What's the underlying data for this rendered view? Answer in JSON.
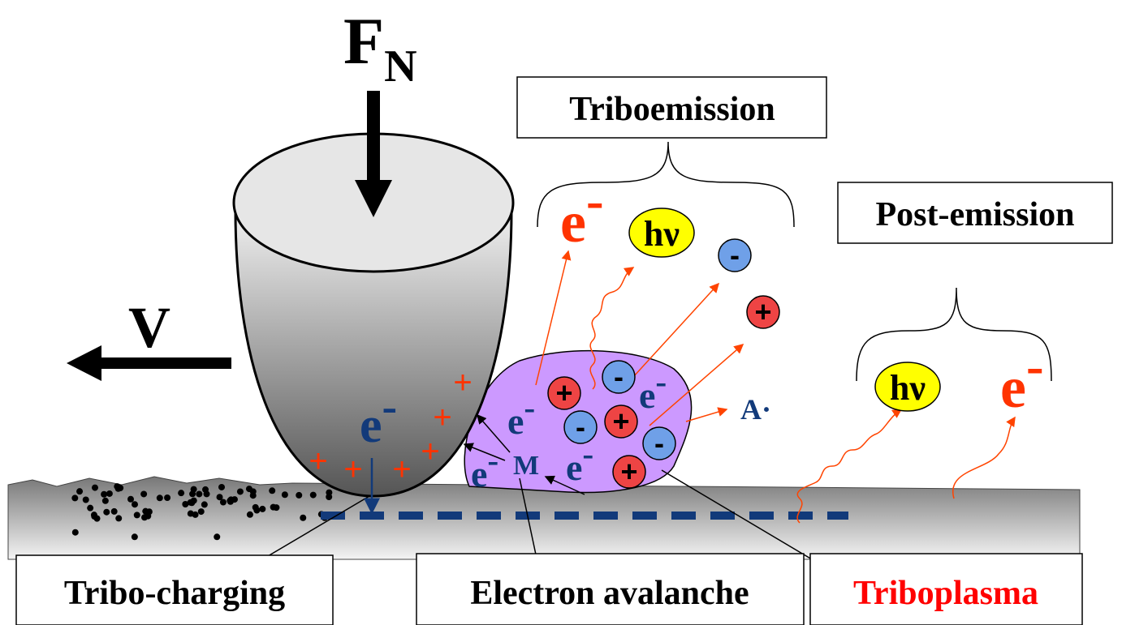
{
  "force_label": {
    "symbol": "F",
    "subscript": "N"
  },
  "velocity_label": "V",
  "boxes": {
    "triboemission": "Triboemission",
    "post_emission": "Post-emission",
    "tribo_charging": "Tribo-charging",
    "electron_avalanche": "Electron avalanche",
    "triboplasma": "Triboplasma"
  },
  "symbols": {
    "electron": "e",
    "negative": "-",
    "positive": "+",
    "photon": "hν",
    "metal": "M",
    "radical": "A·"
  }
}
